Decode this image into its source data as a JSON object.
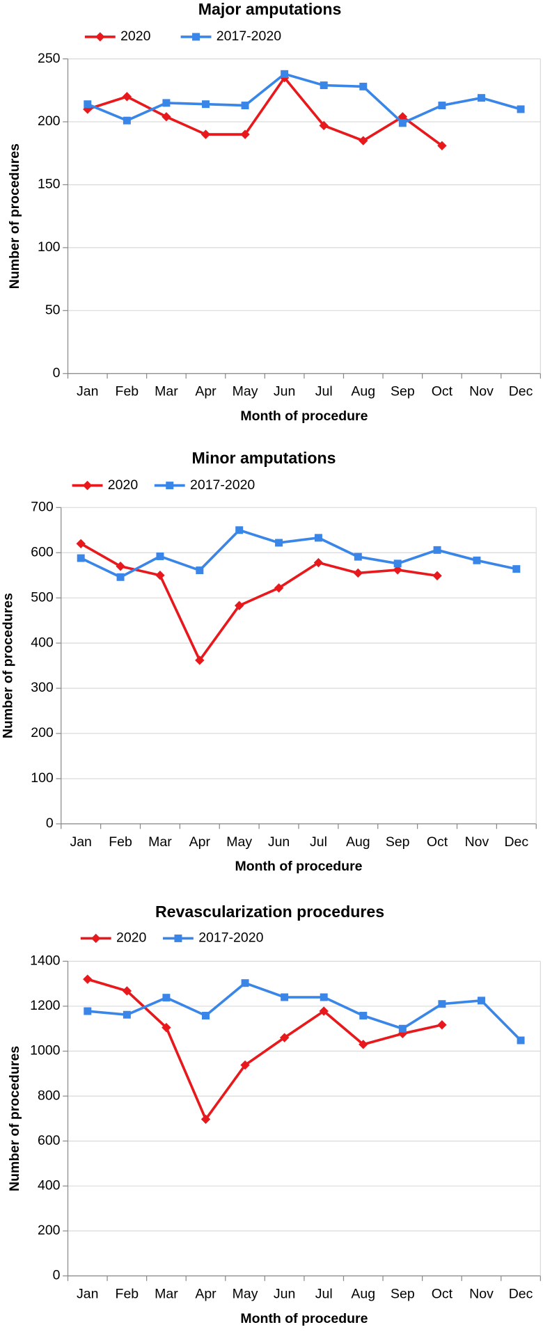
{
  "chart_data": [
    {
      "type": "line",
      "title": "Major amputations",
      "xlabel": "Month of procedure",
      "ylabel": "Number of procedures",
      "categories": [
        "Jan",
        "Feb",
        "Mar",
        "Apr",
        "May",
        "Jun",
        "Jul",
        "Aug",
        "Sep",
        "Oct",
        "Nov",
        "Dec"
      ],
      "series": [
        {
          "name": "2020",
          "color": "#e8191c",
          "marker": "diamond",
          "values": [
            210,
            220,
            204,
            190,
            190,
            235,
            197,
            185,
            204,
            181,
            null,
            null
          ]
        },
        {
          "name": "2017-2020",
          "color": "#3a86e8",
          "marker": "square",
          "values": [
            214,
            201,
            215,
            214,
            213,
            238,
            229,
            228,
            199,
            213,
            219,
            210
          ]
        }
      ],
      "ylim": [
        0,
        250
      ],
      "yticks": [
        0,
        50,
        100,
        150,
        200,
        250
      ],
      "grid": true
    },
    {
      "type": "line",
      "title": "Minor amputations",
      "xlabel": "Month of procedure",
      "ylabel": "Number of procedures",
      "categories": [
        "Jan",
        "Feb",
        "Mar",
        "Apr",
        "May",
        "Jun",
        "Jul",
        "Aug",
        "Sep",
        "Oct",
        "Nov",
        "Dec"
      ],
      "series": [
        {
          "name": "2020",
          "color": "#e8191c",
          "marker": "diamond",
          "values": [
            620,
            570,
            550,
            362,
            483,
            522,
            578,
            555,
            562,
            549,
            null,
            null
          ]
        },
        {
          "name": "2017-2020",
          "color": "#3a86e8",
          "marker": "square",
          "values": [
            588,
            546,
            592,
            561,
            650,
            622,
            633,
            591,
            576,
            606,
            583,
            564
          ]
        }
      ],
      "ylim": [
        0,
        700
      ],
      "yticks": [
        0,
        100,
        200,
        300,
        400,
        500,
        600,
        700
      ],
      "grid": true
    },
    {
      "type": "line",
      "title": "Revascularization procedures",
      "xlabel": "Month of procedure",
      "ylabel": "Number of procedures",
      "categories": [
        "Jan",
        "Feb",
        "Mar",
        "Apr",
        "May",
        "Jun",
        "Jul",
        "Aug",
        "Sep",
        "Oct",
        "Nov",
        "Dec"
      ],
      "series": [
        {
          "name": "2020",
          "color": "#e8191c",
          "marker": "diamond",
          "values": [
            1320,
            1268,
            1105,
            697,
            938,
            1060,
            1178,
            1030,
            1078,
            1117,
            null,
            null
          ]
        },
        {
          "name": "2017-2020",
          "color": "#3a86e8",
          "marker": "square",
          "values": [
            1178,
            1162,
            1238,
            1158,
            1303,
            1240,
            1240,
            1158,
            1100,
            1210,
            1225,
            1048
          ]
        }
      ],
      "ylim": [
        0,
        1400
      ],
      "yticks": [
        0,
        200,
        400,
        600,
        800,
        1000,
        1200,
        1400
      ],
      "grid": true
    }
  ]
}
